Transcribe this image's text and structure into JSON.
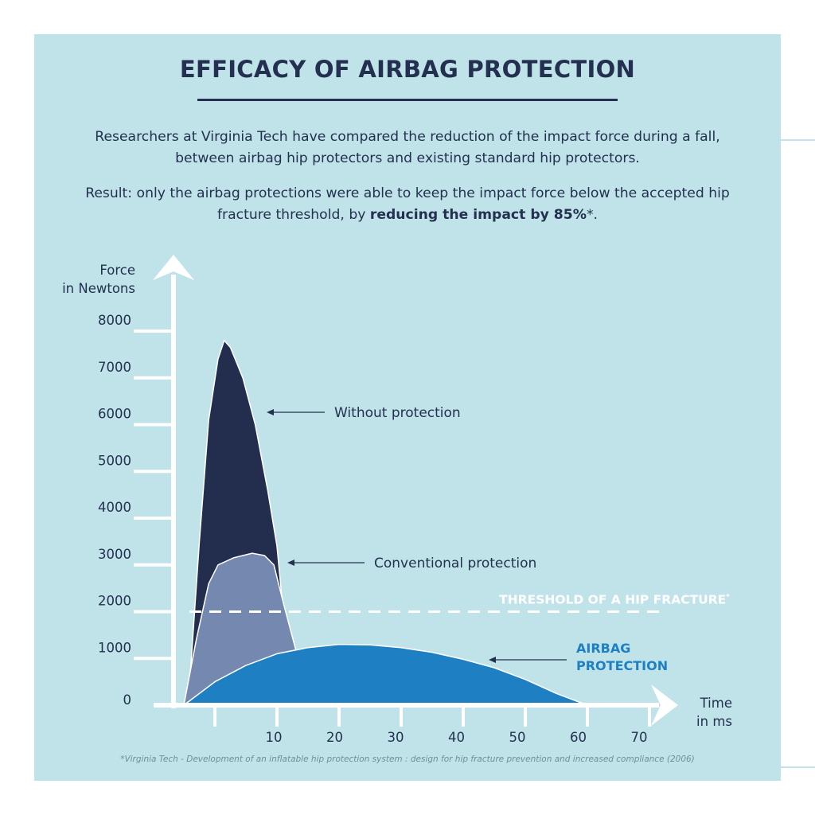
{
  "header": {
    "title": "EFFICACY OF AIRBAG PROTECTION",
    "intro_line1": "Researchers at Virginia Tech have compared the reduction of the impact force during a fall, between airbag hip protectors and existing standard hip protectors.",
    "intro_line2_plain": "Result: only the airbag protections were able to keep the impact force below the accepted hip fracture threshold, by ",
    "intro_line2_bold": "reducing the impact by 85%",
    "intro_line2_suffix": "*."
  },
  "footnote": "*Virginia Tech - Development of an inflatable hip protection system : design for hip fracture prevention and increased compliance (2006)",
  "chart_data": {
    "type": "area",
    "ylabel_line1": "Force",
    "ylabel_line2": "in Newtons",
    "xlabel_line1": "Time",
    "xlabel_line2": "in ms",
    "y_ticks": [
      0,
      1000,
      2000,
      3000,
      4000,
      5000,
      6000,
      7000,
      8000
    ],
    "y_tick_labels": [
      "0",
      "1000",
      "2000",
      "3000",
      "4000",
      "5000",
      "6000",
      "7000",
      "8000"
    ],
    "x_ticks": [
      10,
      20,
      30,
      40,
      50,
      60,
      70
    ],
    "x_tick_labels": [
      "10",
      "20",
      "30",
      "40",
      "50",
      "60",
      "70"
    ],
    "threshold": {
      "value": 2000,
      "label": "THRESHOLD OF A HIP FRACTURE",
      "mark": "*"
    },
    "series": [
      {
        "name": "Without protection",
        "color": "#232e4f",
        "points": [
          [
            -4,
            600
          ],
          [
            -2.5,
            3500
          ],
          [
            -1,
            6100
          ],
          [
            0.5,
            7400
          ],
          [
            1.5,
            7800
          ],
          [
            2.5,
            7650
          ],
          [
            4.5,
            7000
          ],
          [
            6.5,
            6000
          ],
          [
            8.5,
            4600
          ],
          [
            10,
            3400
          ],
          [
            11,
            2000
          ]
        ]
      },
      {
        "name": "Conventional protection",
        "color": "#7589b0",
        "points": [
          [
            -5,
            0
          ],
          [
            -3,
            1400
          ],
          [
            -1,
            2600
          ],
          [
            0.5,
            3000
          ],
          [
            3,
            3150
          ],
          [
            6,
            3250
          ],
          [
            8,
            3200
          ],
          [
            9.5,
            3000
          ],
          [
            11,
            2200
          ],
          [
            13,
            1200
          ]
        ]
      },
      {
        "name": "AIRBAG PROTECTION",
        "label_lines": [
          "AIRBAG",
          "PROTECTION"
        ],
        "color": "#1e80c2",
        "points": [
          [
            -5,
            0
          ],
          [
            0,
            500
          ],
          [
            5,
            850
          ],
          [
            10,
            1100
          ],
          [
            15,
            1230
          ],
          [
            20,
            1300
          ],
          [
            25,
            1290
          ],
          [
            30,
            1230
          ],
          [
            35,
            1130
          ],
          [
            40,
            980
          ],
          [
            45,
            800
          ],
          [
            50,
            550
          ],
          [
            55,
            250
          ],
          [
            60,
            0
          ]
        ]
      }
    ]
  }
}
